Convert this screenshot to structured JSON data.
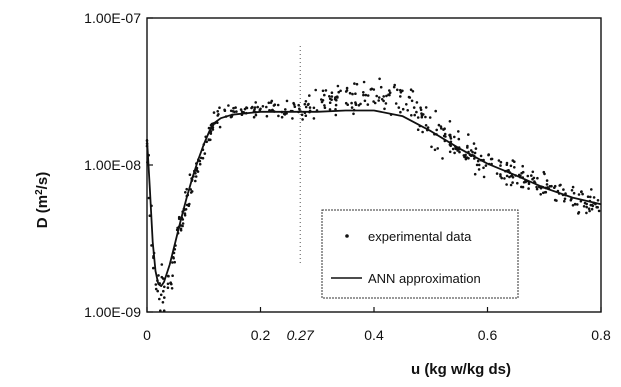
{
  "chart_data": {
    "type": "scatter",
    "title": "",
    "xlabel": "u (kg w/kg ds)",
    "ylabel": "D (m²/s)",
    "ylabel_main": "D (m",
    "ylabel_sup": "2",
    "ylabel_tail": "/s)",
    "xlim": [
      0,
      0.8
    ],
    "ylim": [
      1e-09,
      1e-07
    ],
    "yscale": "log",
    "grid": false,
    "legend_position": "bottom-right",
    "x_ticks": [
      0,
      0.2,
      0.4,
      0.6,
      0.8
    ],
    "x_tick_labels": [
      "0",
      "0.2",
      "0.4",
      "0.6",
      "0.8"
    ],
    "x_annotation": {
      "value": 0.27,
      "label": "0.27",
      "style": "dotted vertical line"
    },
    "y_ticks": [
      1e-09,
      1e-08,
      1e-07
    ],
    "y_tick_labels": [
      "1.00E-09",
      "1.00E-08",
      "1.00E-07"
    ],
    "series": [
      {
        "name": "experimental data",
        "kind": "markers",
        "color": "#111111",
        "trend": {
          "x": [
            0.0,
            0.005,
            0.01,
            0.02,
            0.03,
            0.04,
            0.05,
            0.06,
            0.08,
            0.1,
            0.12,
            0.15,
            0.2,
            0.25,
            0.3,
            0.35,
            0.4,
            0.45,
            0.5,
            0.55,
            0.6,
            0.65,
            0.7,
            0.75,
            0.8
          ],
          "y": [
            1.5e-08,
            6e-09,
            2.3e-09,
            1.4e-09,
            1.3e-09,
            1.8e-09,
            2.8e-09,
            4.5e-09,
            7.5e-09,
            1.3e-08,
            2e-08,
            2.3e-08,
            2.4e-08,
            2.3e-08,
            2.6e-08,
            2.9e-08,
            3e-08,
            2.7e-08,
            1.8e-08,
            1.3e-08,
            1e-08,
            8.5e-09,
            7e-09,
            6e-09,
            5.3e-09
          ]
        },
        "spread_decades": [
          0.12,
          0.2,
          0.25,
          0.2,
          0.2,
          0.18,
          0.15,
          0.12,
          0.1,
          0.08,
          0.08,
          0.06,
          0.07,
          0.08,
          0.1,
          0.12,
          0.12,
          0.14,
          0.16,
          0.14,
          0.12,
          0.11,
          0.1,
          0.1,
          0.1
        ],
        "n_points": 520
      },
      {
        "name": "ANN approximation",
        "kind": "line",
        "color": "#111111",
        "x": [
          0.0,
          0.005,
          0.01,
          0.015,
          0.02,
          0.025,
          0.03,
          0.04,
          0.05,
          0.06,
          0.07,
          0.08,
          0.09,
          0.1,
          0.11,
          0.12,
          0.13,
          0.15,
          0.2,
          0.25,
          0.3,
          0.35,
          0.4,
          0.45,
          0.5,
          0.55,
          0.6,
          0.65,
          0.7,
          0.75,
          0.8
        ],
        "y": [
          1.5e-08,
          7e-09,
          3e-09,
          1.9e-09,
          1.55e-09,
          1.5e-09,
          1.6e-09,
          2.1e-09,
          3e-09,
          4.3e-09,
          6e-09,
          8.2e-09,
          1.08e-08,
          1.38e-08,
          1.7e-08,
          1.95e-08,
          2.08e-08,
          2.2e-08,
          2.3e-08,
          2.3e-08,
          2.3e-08,
          2.35e-08,
          2.35e-08,
          2.15e-08,
          1.7e-08,
          1.3e-08,
          1.02e-08,
          8.5e-09,
          7e-09,
          6e-09,
          5.4e-09
        ]
      }
    ]
  }
}
